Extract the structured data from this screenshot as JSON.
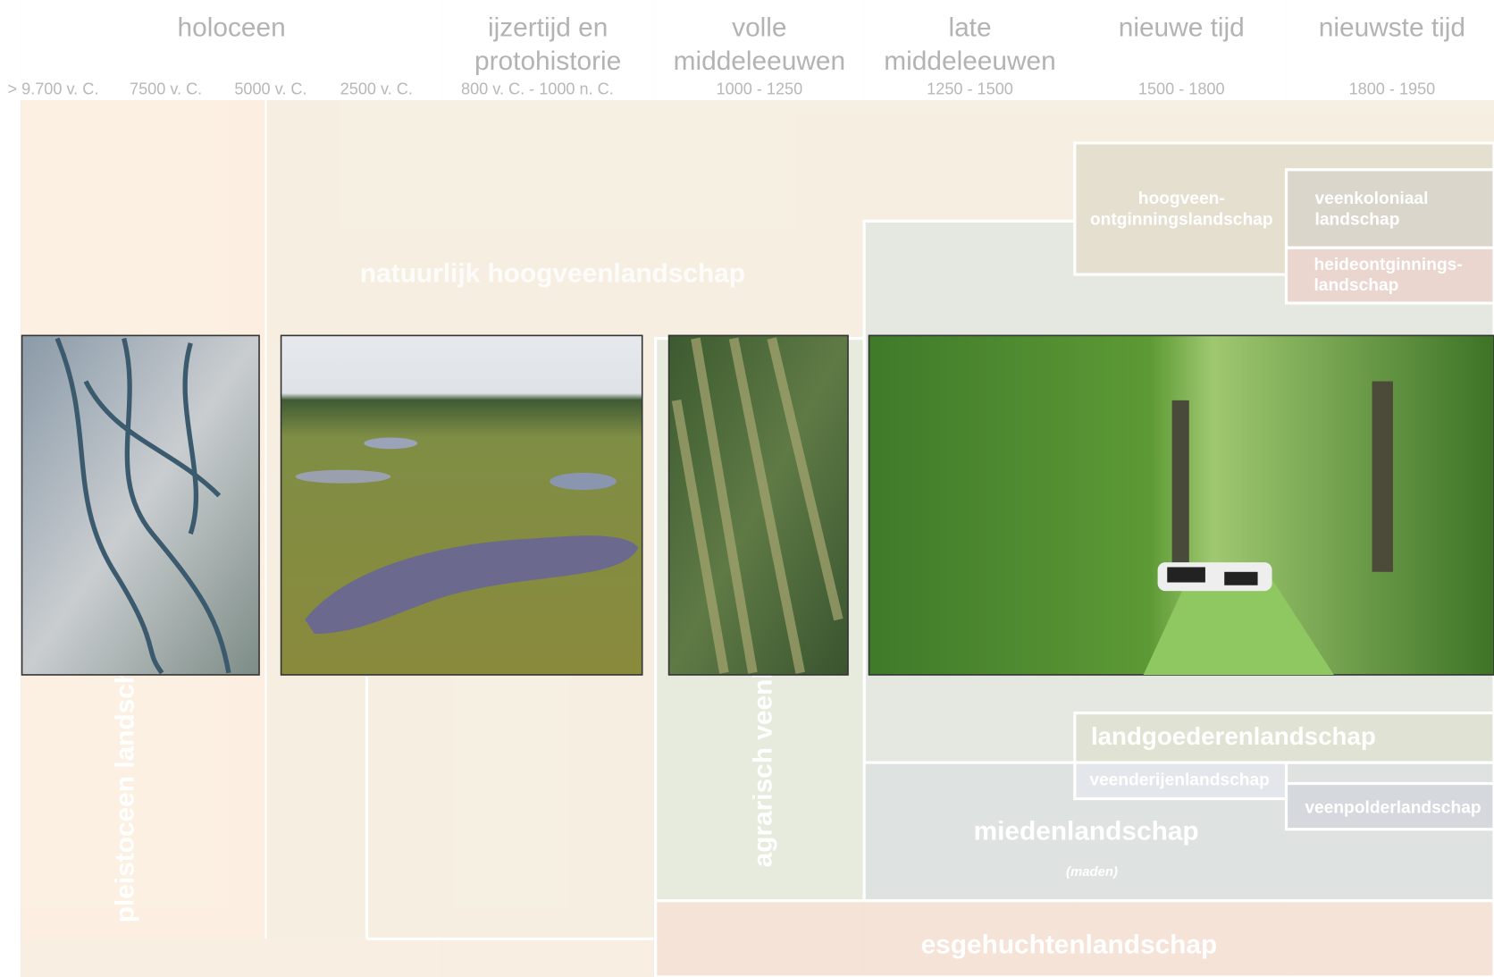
{
  "header": {
    "periods": [
      [
        "holoceen"
      ],
      [
        "ijzertijd en",
        "protohistorie"
      ],
      [
        "volle",
        "middeleeuwen"
      ],
      [
        "late",
        "middeleeuwen"
      ],
      [
        "nieuwe tijd"
      ],
      [
        "nieuwste tijd"
      ]
    ],
    "dates": [
      "> 9.700 v. C.",
      "7500 v. C.",
      "5000 v. C.",
      "2500 v. C.",
      "800 v. C. - 1000 n. C.",
      "1000 - 1250",
      "1250 - 1500",
      "1500 - 1800",
      "1800 - 1950"
    ]
  },
  "landscapes": {
    "pleistoceen": "pleistoceen landschap",
    "natuurlijk_hoogveen": "natuurlijk hoogveenlandschap",
    "agrarisch_veen": "agrarisch veenlandschap",
    "hoogveen_ontginning": [
      "hoogveen-",
      "ontginningslandschap"
    ],
    "veenkoloniaal": [
      "veenkoloniaal",
      "landschap"
    ],
    "heideontginning": [
      "heideontginnings-",
      "landschap"
    ],
    "landgoederen": "landgoederenlandschap",
    "veenderijen": "veenderijenlandschap",
    "veenpolder": "veenpolderlandschap",
    "mieden": "miedenlandschap",
    "maden": "(maden)",
    "esgehuchten": "esgehuchtenlandschap"
  }
}
